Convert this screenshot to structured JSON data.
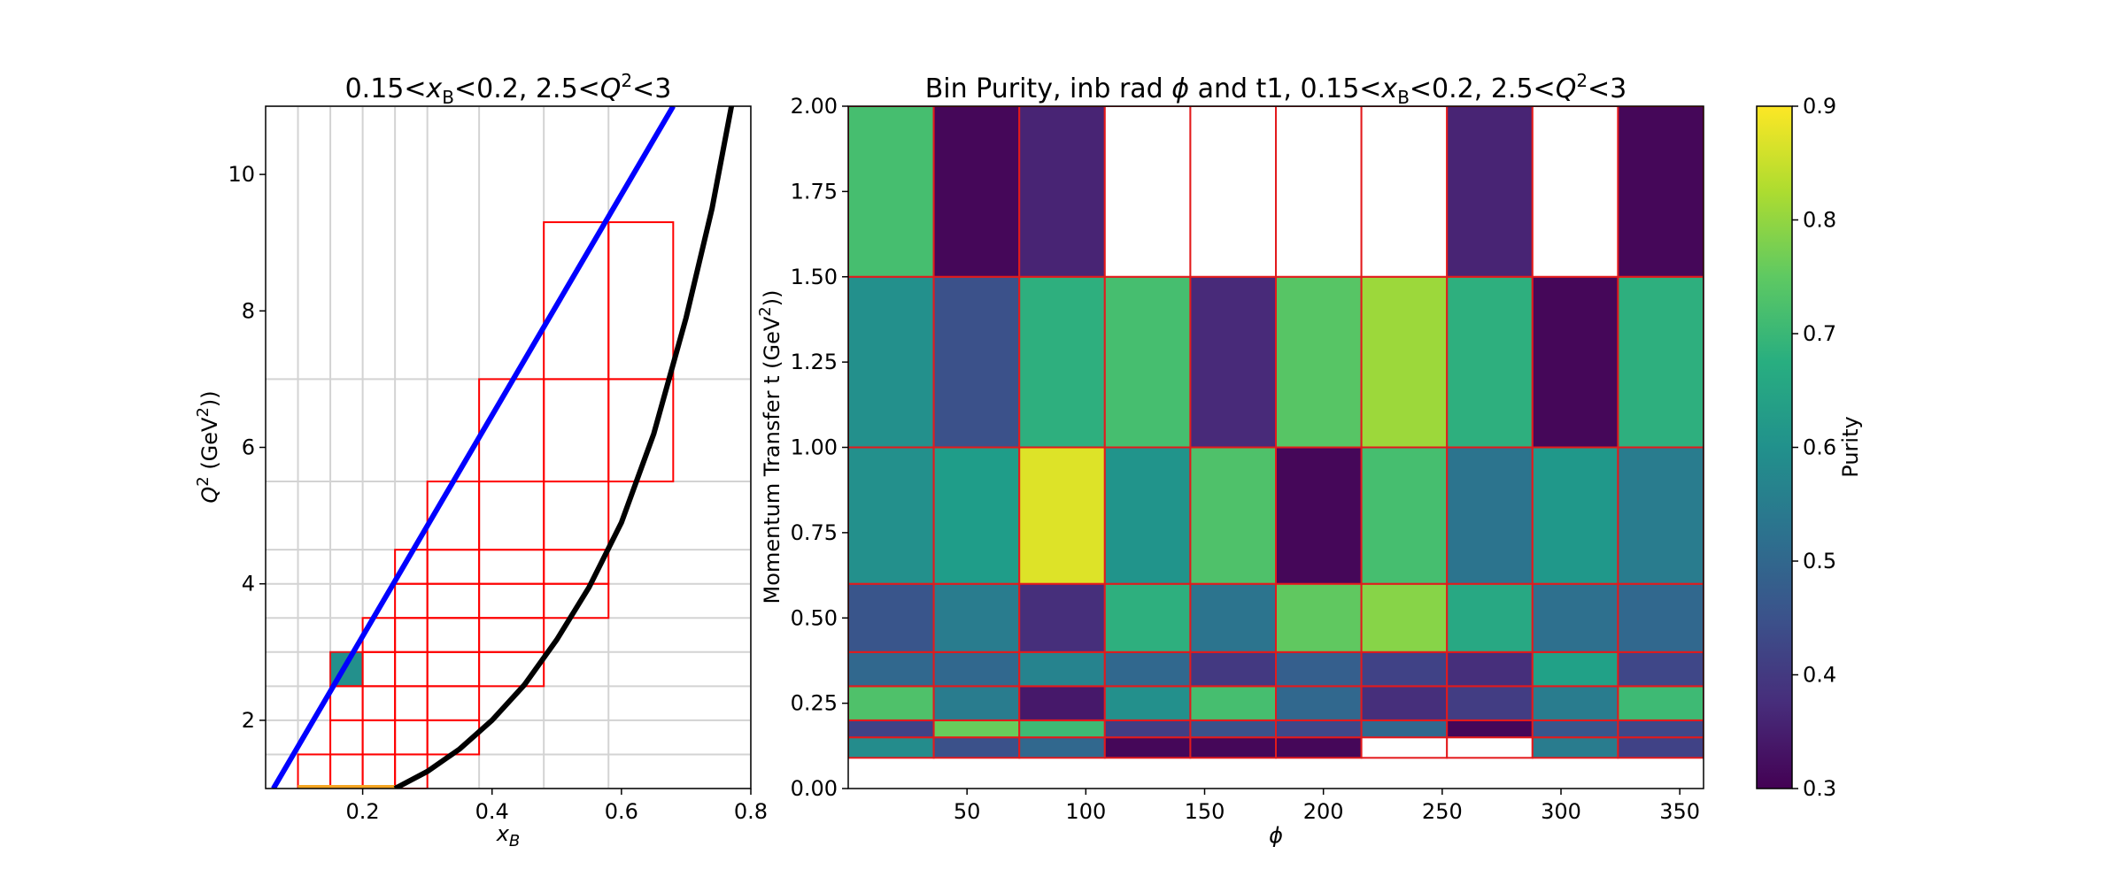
{
  "chart_data": [
    {
      "type": "scatter",
      "title_main": "0.15<",
      "title_xb": "x",
      "title_xb_sub": "B",
      "title_mid": "<0.2, 2.5<",
      "title_q": "Q",
      "title_q_sup": "2",
      "title_end": "<3",
      "xlabel": "x",
      "xlabel_sub": "B",
      "ylabel": "Q",
      "ylabel_sup": "2",
      "ylabel_rest": " (GeV",
      "ylabel_sup2": "2",
      "ylabel_end": "))",
      "xlim": [
        0.05,
        0.8
      ],
      "ylim": [
        1,
        11
      ],
      "xticks": [
        0.2,
        0.4,
        0.6,
        0.8
      ],
      "xtick_labels": [
        "0.2",
        "0.4",
        "0.6",
        "0.8"
      ],
      "yticks": [
        2,
        4,
        6,
        8,
        10
      ],
      "ytick_labels": [
        "2",
        "4",
        "6",
        "8",
        "10"
      ],
      "grid_x": [
        0.1,
        0.15,
        0.2,
        0.25,
        0.3,
        0.38,
        0.48,
        0.58,
        0.8
      ],
      "grid_y": [
        1.0,
        1.5,
        2.0,
        2.5,
        3.0,
        3.5,
        4.0,
        4.5,
        5.5,
        7.0,
        11.0
      ],
      "red_bins": [
        [
          0.1,
          0.15,
          1.0,
          1.5
        ],
        [
          0.15,
          0.2,
          1.0,
          1.5
        ],
        [
          0.2,
          0.25,
          1.0,
          1.5
        ],
        [
          0.25,
          0.3,
          1.0,
          1.5
        ],
        [
          0.15,
          0.2,
          1.5,
          2.0
        ],
        [
          0.2,
          0.25,
          1.5,
          2.0
        ],
        [
          0.25,
          0.3,
          1.5,
          2.0
        ],
        [
          0.3,
          0.38,
          1.5,
          2.0
        ],
        [
          0.15,
          0.2,
          2.0,
          2.5
        ],
        [
          0.2,
          0.25,
          2.0,
          2.5
        ],
        [
          0.25,
          0.3,
          2.0,
          2.5
        ],
        [
          0.3,
          0.38,
          2.0,
          2.5
        ],
        [
          0.2,
          0.25,
          2.5,
          3.0
        ],
        [
          0.25,
          0.3,
          2.5,
          3.0
        ],
        [
          0.3,
          0.38,
          2.5,
          3.0
        ],
        [
          0.38,
          0.48,
          2.5,
          3.0
        ],
        [
          0.2,
          0.25,
          3.0,
          3.5
        ],
        [
          0.25,
          0.3,
          3.0,
          3.5
        ],
        [
          0.3,
          0.38,
          3.0,
          3.5
        ],
        [
          0.38,
          0.48,
          3.0,
          3.5
        ],
        [
          0.25,
          0.3,
          3.5,
          4.0
        ],
        [
          0.3,
          0.38,
          3.5,
          4.0
        ],
        [
          0.38,
          0.48,
          3.5,
          4.0
        ],
        [
          0.48,
          0.58,
          3.5,
          4.0
        ],
        [
          0.25,
          0.3,
          4.0,
          4.5
        ],
        [
          0.3,
          0.38,
          4.0,
          4.5
        ],
        [
          0.38,
          0.48,
          4.0,
          4.5
        ],
        [
          0.48,
          0.58,
          4.0,
          4.5
        ],
        [
          0.3,
          0.38,
          4.5,
          5.5
        ],
        [
          0.38,
          0.48,
          4.5,
          5.5
        ],
        [
          0.48,
          0.58,
          4.5,
          5.5
        ],
        [
          0.38,
          0.48,
          5.5,
          7.0
        ],
        [
          0.48,
          0.58,
          5.5,
          7.0
        ],
        [
          0.58,
          0.68,
          5.5,
          7.0
        ],
        [
          0.48,
          0.58,
          7.0,
          9.3
        ],
        [
          0.58,
          0.68,
          7.0,
          9.3
        ]
      ],
      "highlight_bin": {
        "x": [
          0.15,
          0.2
        ],
        "y": [
          2.5,
          3.0
        ],
        "purity": 0.6
      },
      "blue_line": {
        "x": [
          0.062,
          0.68
        ],
        "y": [
          1.0,
          11.0
        ]
      },
      "black_curve_points": [
        [
          0.25,
          1.0
        ],
        [
          0.3,
          1.25
        ],
        [
          0.35,
          1.58
        ],
        [
          0.4,
          2.0
        ],
        [
          0.45,
          2.52
        ],
        [
          0.5,
          3.18
        ],
        [
          0.55,
          3.95
        ],
        [
          0.6,
          4.9
        ],
        [
          0.65,
          6.2
        ],
        [
          0.7,
          7.9
        ],
        [
          0.74,
          9.5
        ],
        [
          0.77,
          11.0
        ]
      ],
      "orange_segment": {
        "x": [
          0.1,
          0.25
        ],
        "y": [
          1.0,
          1.0
        ]
      }
    },
    {
      "type": "heatmap",
      "title_main": "Bin Purity, inb rad ",
      "title_phi": "ϕ",
      "title_mid": " and t1, 0.15<",
      "title_xb": "x",
      "title_xb_sub": "B",
      "title_mid2": "<0.2, 2.5<",
      "title_q": "Q",
      "title_q_sup": "2",
      "title_end": "<3",
      "xlabel": "ϕ",
      "ylabel": "Momentum Transfer t (GeV",
      "ylabel_sup": "2",
      "ylabel_end": "))",
      "xlim": [
        0,
        360
      ],
      "ylim": [
        0,
        2.0
      ],
      "xticks": [
        50,
        100,
        150,
        200,
        250,
        300,
        350
      ],
      "xtick_labels": [
        "50",
        "100",
        "150",
        "200",
        "250",
        "300",
        "350"
      ],
      "yticks": [
        0.0,
        0.25,
        0.5,
        0.75,
        1.0,
        1.25,
        1.5,
        1.75,
        2.0
      ],
      "ytick_labels": [
        "0.00",
        "0.25",
        "0.50",
        "0.75",
        "1.00",
        "1.25",
        "1.50",
        "1.75",
        "2.00"
      ],
      "x_edges": [
        0,
        36,
        72,
        108,
        144,
        180,
        216,
        252,
        288,
        324,
        360
      ],
      "y_edges": [
        0.09,
        0.15,
        0.2,
        0.3,
        0.4,
        0.6,
        1.0,
        1.5,
        2.0
      ],
      "purity": [
        [
          0.59,
          0.45,
          0.5,
          0.31,
          0.31,
          0.31,
          null,
          null,
          0.55,
          0.42
        ],
        [
          0.42,
          0.76,
          0.71,
          0.41,
          0.45,
          0.43,
          0.5,
          0.31,
          0.46,
          0.43
        ],
        [
          0.73,
          0.55,
          0.34,
          0.6,
          0.72,
          0.5,
          0.38,
          0.41,
          0.55,
          0.71
        ],
        [
          0.5,
          0.5,
          0.57,
          0.5,
          0.4,
          0.48,
          0.42,
          0.38,
          0.64,
          0.43
        ],
        [
          0.46,
          0.55,
          0.38,
          0.68,
          0.53,
          0.75,
          0.79,
          0.66,
          0.52,
          0.5
        ],
        [
          0.6,
          0.63,
          0.87,
          0.61,
          0.73,
          0.31,
          0.72,
          0.53,
          0.62,
          0.55
        ],
        [
          0.6,
          0.45,
          0.68,
          0.72,
          0.37,
          0.74,
          0.81,
          0.68,
          0.31,
          0.68
        ],
        [
          0.72,
          0.31,
          0.36,
          null,
          null,
          null,
          null,
          0.36,
          null,
          0.31
        ]
      ],
      "colorbar_label": "Purity",
      "colorbar_range": [
        0.3,
        0.9
      ],
      "colorbar_ticks": [
        0.3,
        0.4,
        0.5,
        0.6,
        0.7,
        0.8,
        0.9
      ],
      "colorbar_tick_labels": [
        "0.3",
        "0.4",
        "0.5",
        "0.6",
        "0.7",
        "0.8",
        "0.9"
      ],
      "colormap": "viridis",
      "edge_color": "#e31a1c"
    }
  ]
}
